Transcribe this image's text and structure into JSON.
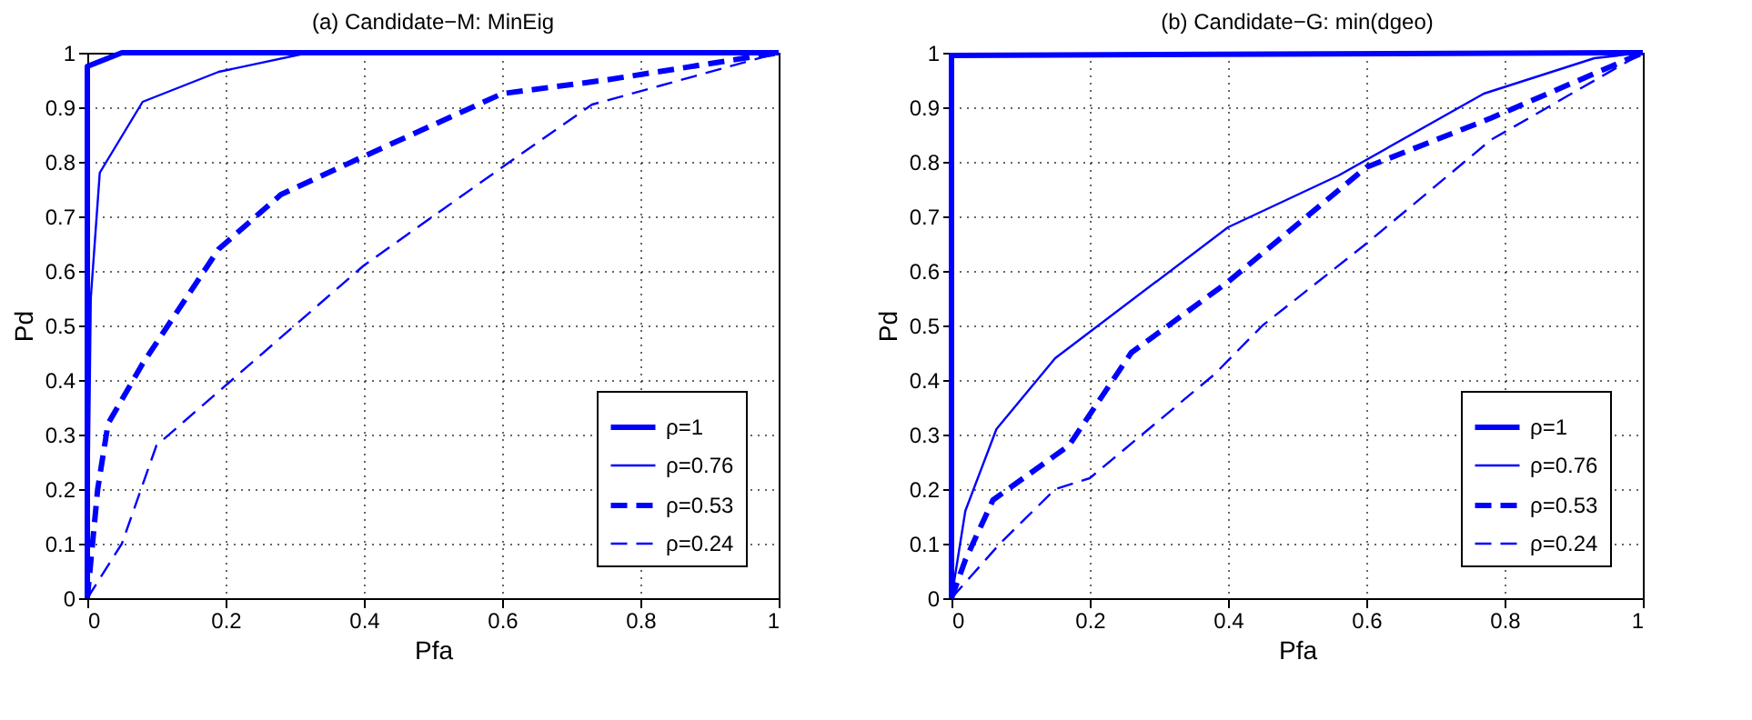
{
  "chart_data": [
    {
      "type": "line",
      "title": "(a) Candidate−M: MinEig",
      "xlabel": "Pfa",
      "ylabel": "Pd",
      "xlim": [
        0,
        1
      ],
      "ylim": [
        0,
        1
      ],
      "xticks": [
        0,
        0.2,
        0.4,
        0.6,
        0.8,
        1
      ],
      "yticks": [
        0,
        0.1,
        0.2,
        0.3,
        0.4,
        0.5,
        0.6,
        0.7,
        0.8,
        0.9,
        1
      ],
      "grid": true,
      "legend": "bottom right",
      "marker": "none",
      "series": [
        {
          "name": "ρ=1",
          "color": "#0000ff",
          "line_style": "solid",
          "x": [
            0,
            0,
            0.05,
            1
          ],
          "values": [
            0,
            0.975,
            1,
            1
          ]
        },
        {
          "name": "ρ=0.76",
          "color": "#0000ff",
          "line_style": "solid",
          "x": [
            0,
            0.005,
            0.018,
            0.08,
            0.19,
            0.32,
            1
          ],
          "values": [
            0,
            0.55,
            0.78,
            0.91,
            0.965,
            1,
            1
          ]
        },
        {
          "name": "ρ=0.53",
          "color": "#0000ff",
          "line_style": "dashed",
          "x": [
            0,
            0.015,
            0.03,
            0.08,
            0.19,
            0.28,
            0.4,
            0.6,
            0.75,
            1
          ],
          "values": [
            0,
            0.2,
            0.32,
            0.43,
            0.64,
            0.74,
            0.81,
            0.925,
            0.95,
            1
          ]
        },
        {
          "name": "ρ=0.24",
          "color": "#0000ff",
          "line_style": "dashed",
          "x": [
            0,
            0.05,
            0.1,
            0.2,
            0.4,
            0.6,
            0.73,
            0.83,
            1
          ],
          "values": [
            0,
            0.1,
            0.28,
            0.39,
            0.61,
            0.79,
            0.905,
            0.94,
            1
          ]
        }
      ]
    },
    {
      "type": "line",
      "title": "(b) Candidate−G: min(dgeo)",
      "xlabel": "Pfa",
      "ylabel": "Pd",
      "xlim": [
        0,
        1
      ],
      "ylim": [
        0,
        1
      ],
      "xticks": [
        0,
        0.2,
        0.4,
        0.6,
        0.8,
        1
      ],
      "yticks": [
        0,
        0.1,
        0.2,
        0.3,
        0.4,
        0.5,
        0.6,
        0.7,
        0.8,
        0.9,
        1
      ],
      "grid": true,
      "legend": "bottom right",
      "marker": "none",
      "series": [
        {
          "name": "ρ=1",
          "color": "#0000ff",
          "line_style": "solid",
          "x": [
            0,
            0,
            1
          ],
          "values": [
            0,
            0.995,
            1
          ]
        },
        {
          "name": "ρ=0.76",
          "color": "#0000ff",
          "line_style": "solid",
          "x": [
            0,
            0.02,
            0.065,
            0.15,
            0.4,
            0.56,
            0.77,
            0.93,
            1
          ],
          "values": [
            0,
            0.16,
            0.31,
            0.44,
            0.68,
            0.775,
            0.925,
            0.99,
            1
          ]
        },
        {
          "name": "ρ=0.53",
          "color": "#0000ff",
          "line_style": "dashed",
          "x": [
            0,
            0.02,
            0.06,
            0.17,
            0.26,
            0.4,
            0.6,
            0.78,
            1
          ],
          "values": [
            0,
            0.07,
            0.18,
            0.28,
            0.45,
            0.58,
            0.79,
            0.88,
            1
          ]
        },
        {
          "name": "ρ=0.24",
          "color": "#0000ff",
          "line_style": "dashed",
          "x": [
            0,
            0.07,
            0.15,
            0.2,
            0.38,
            0.45,
            0.6,
            0.78,
            1
          ],
          "values": [
            0,
            0.1,
            0.2,
            0.22,
            0.41,
            0.5,
            0.65,
            0.84,
            1
          ]
        }
      ]
    }
  ]
}
